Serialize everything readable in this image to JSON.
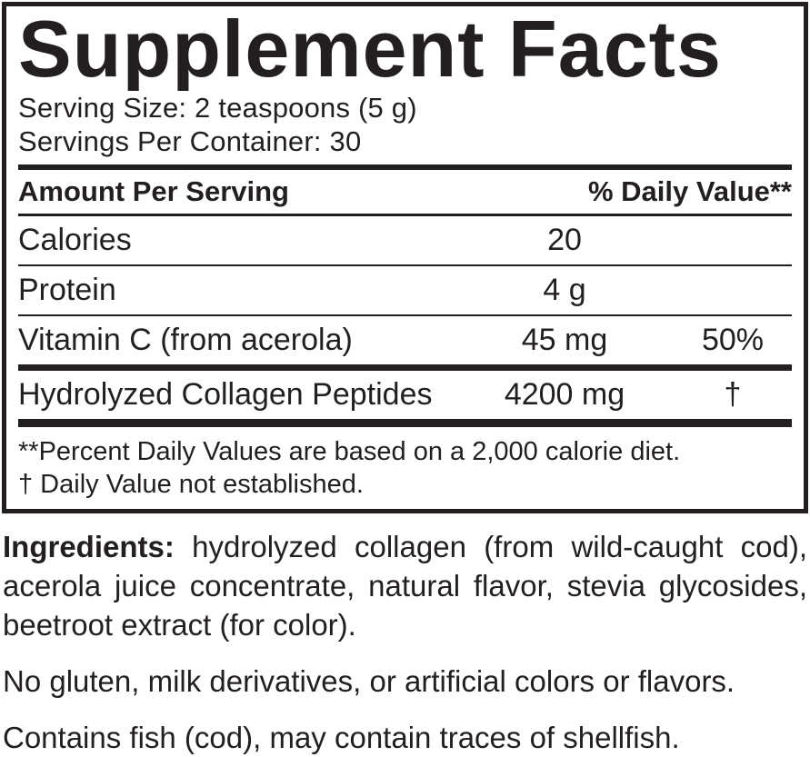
{
  "panel": {
    "title": "Supplement Facts",
    "serving_size": "Serving Size: 2 teaspoons (5 g)",
    "servings_per_container": "Servings Per Container: 30",
    "columns": {
      "amount": "Amount Per Serving",
      "daily_value": "% Daily Value**"
    },
    "rows": [
      {
        "name": "Calories",
        "amount": "20",
        "dv": ""
      },
      {
        "name": "Protein",
        "amount": "4 g",
        "dv": ""
      },
      {
        "name": "Vitamin C (from acerola)",
        "amount": "45 mg",
        "dv": "50%"
      },
      {
        "name": "Hydrolyzed Collagen Peptides",
        "amount": "4200 mg",
        "dv": "†"
      }
    ],
    "footnotes": {
      "percent_daily_value": "**Percent Daily Values are based on a 2,000 calorie diet.",
      "daily_value_not_established": "† Daily Value not established."
    }
  },
  "ingredients": {
    "label": "Ingredients:",
    "text": "hydrolyzed collagen (from wild-caught cod), acerola juice concentrate, natural flavor, stevia glycosides, beetroot extract (for color)."
  },
  "notes": {
    "no_artificial": "No gluten, milk derivatives, or artificial colors or flavors.",
    "allergen": "Contains fish (cod), may contain traces of shellfish."
  },
  "colors": {
    "ink": "#231f20",
    "background": "#ffffff"
  }
}
